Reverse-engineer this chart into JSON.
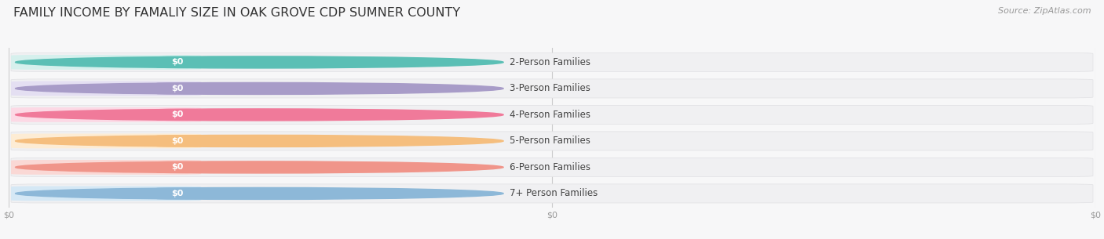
{
  "title": "FAMILY INCOME BY FAMALIY SIZE IN OAK GROVE CDP SUMNER COUNTY",
  "source": "Source: ZipAtlas.com",
  "categories": [
    "2-Person Families",
    "3-Person Families",
    "4-Person Families",
    "5-Person Families",
    "6-Person Families",
    "7+ Person Families"
  ],
  "values": [
    0,
    0,
    0,
    0,
    0,
    0
  ],
  "bar_colors": [
    "#5bbfb5",
    "#a89cc8",
    "#f07a9a",
    "#f5be7e",
    "#f0958a",
    "#8db8d8"
  ],
  "bar_bg_colors": [
    "#d6f0ed",
    "#e4dff2",
    "#fcd9e5",
    "#fdecd4",
    "#fad8d5",
    "#d5e8f5"
  ],
  "circle_colors": [
    "#5bbfb5",
    "#a89cc8",
    "#f07a9a",
    "#f5be7e",
    "#f0958a",
    "#8db8d8"
  ],
  "value_labels": [
    "$0",
    "$0",
    "$0",
    "$0",
    "$0",
    "$0"
  ],
  "background_color": "#f7f7f8",
  "row_bg_color": "#f0f0f2",
  "title_fontsize": 11.5,
  "label_fontsize": 8.5,
  "source_fontsize": 8
}
